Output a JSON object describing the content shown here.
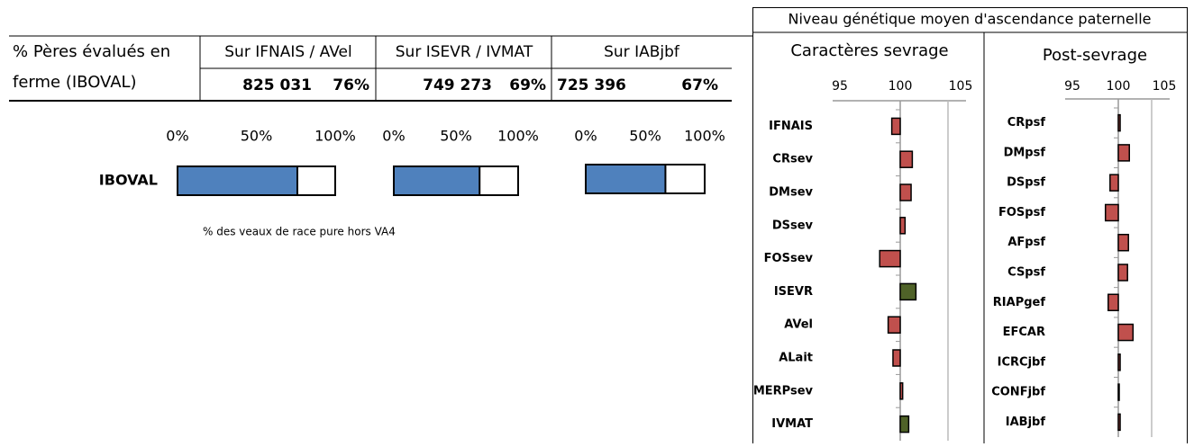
{
  "header": {
    "title": "Niveau génétique moyen d'ascendance paternelle"
  },
  "table": {
    "label": [
      "% Pères évalués en",
      "ferme (IBOVAL)"
    ],
    "columns": [
      "Sur IFNAIS / AVel",
      "Sur ISEVR / IVMAT",
      "Sur IABjbf"
    ],
    "counts": [
      "825 031",
      "749 273",
      "725 396"
    ]
  },
  "chart_data": [
    {
      "type": "bar",
      "orientation": "horizontal",
      "categories": [
        "IBOVAL"
      ],
      "values": [
        76
      ],
      "value_labels": [
        "76%"
      ],
      "color": "#4f81bd",
      "xlim": [
        0,
        100
      ],
      "xticks": [
        {
          "value": 0,
          "label": "0%"
        },
        {
          "value": 50,
          "label": "50%"
        },
        {
          "value": 100,
          "label": "100%"
        }
      ],
      "annotation": "% des veaux de race pure hors VA4"
    },
    {
      "type": "bar",
      "orientation": "horizontal",
      "categories": [
        null
      ],
      "values": [
        69
      ],
      "value_labels": [
        "69%"
      ],
      "color": "#4f81bd",
      "xlim": [
        0,
        100
      ],
      "xticks": [
        {
          "value": 0,
          "label": "0%"
        },
        {
          "value": 50,
          "label": "50%"
        },
        {
          "value": 100,
          "label": "100%"
        }
      ]
    },
    {
      "type": "bar",
      "orientation": "horizontal",
      "categories": [
        null
      ],
      "values": [
        67
      ],
      "value_labels": [
        "67%"
      ],
      "color": "#4f81bd",
      "xlim": [
        0,
        100
      ],
      "xticks": [
        {
          "value": 0,
          "label": "0%"
        },
        {
          "value": 50,
          "label": "50%"
        },
        {
          "value": 100,
          "label": "100%"
        }
      ]
    },
    {
      "type": "deviation",
      "title": "Caractères sevrage",
      "categories": [
        "IFNAIS",
        "CRsev",
        "DMsev",
        "DSsev",
        "FOSsev",
        "ISEVR",
        "AVel",
        "ALait",
        "MERPsev",
        "IVMAT"
      ],
      "values": [
        99.3,
        101.0,
        100.9,
        100.4,
        98.3,
        101.3,
        99.0,
        99.4,
        100.2,
        100.7
      ],
      "colors": [
        "#c0504d",
        "#c0504d",
        "#c0504d",
        "#c0504d",
        "#c0504d",
        "#4f6228",
        "#c0504d",
        "#c0504d",
        "#c0504d",
        "#4f6228"
      ],
      "base": 100,
      "xlim": [
        95,
        105
      ],
      "xticks": [
        95,
        100,
        105
      ]
    },
    {
      "type": "deviation",
      "title": "Post-sevrage",
      "categories": [
        "CRpsf",
        "DMpsf",
        "DSpsf",
        "FOSpsf",
        "AFpsf",
        "CSpsf",
        "RIAPgef",
        "EFCAR",
        "ICRCjbf",
        "CONFjbf",
        "IABjbf"
      ],
      "values": [
        100.2,
        101.2,
        99.1,
        98.6,
        101.1,
        101.0,
        98.9,
        101.6,
        100.2,
        100.0,
        100.2
      ],
      "colors": [
        "#c0504d",
        "#c0504d",
        "#c0504d",
        "#c0504d",
        "#c0504d",
        "#c0504d",
        "#c0504d",
        "#c0504d",
        "#c0504d",
        "#c0504d",
        "#c0504d"
      ],
      "base": 100,
      "xlim": [
        95,
        105
      ],
      "xticks": [
        95,
        100,
        105
      ]
    }
  ]
}
